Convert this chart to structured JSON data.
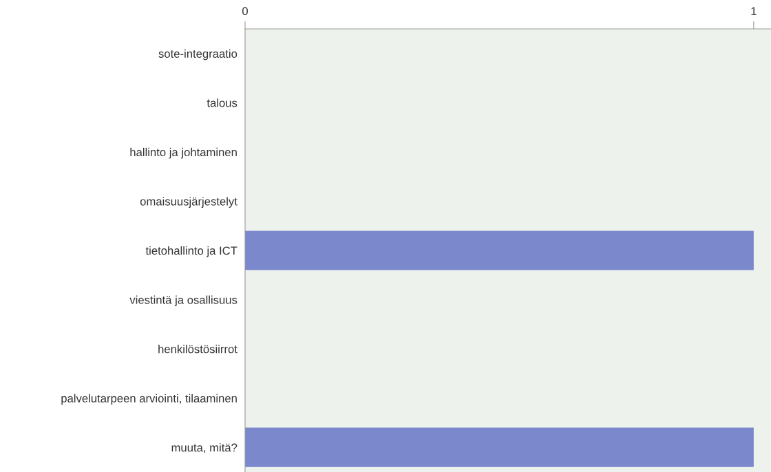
{
  "chart_data": {
    "type": "bar",
    "orientation": "horizontal",
    "categories": [
      "sote-integraatio",
      "talous",
      "hallinto ja johtaminen",
      "omaisuusjärjestelyt",
      "tietohallinto ja ICT",
      "viestintä ja osallisuus",
      "henkilöstösiirrot",
      "palvelutarpeen arviointi, tilaaminen",
      "muuta, mitä?"
    ],
    "values": [
      0,
      0,
      0,
      0,
      1,
      0,
      0,
      0,
      1
    ],
    "color": "#7b88cc",
    "xlim": [
      0,
      1.034
    ],
    "xticks": [
      0,
      1
    ],
    "grid": false
  }
}
